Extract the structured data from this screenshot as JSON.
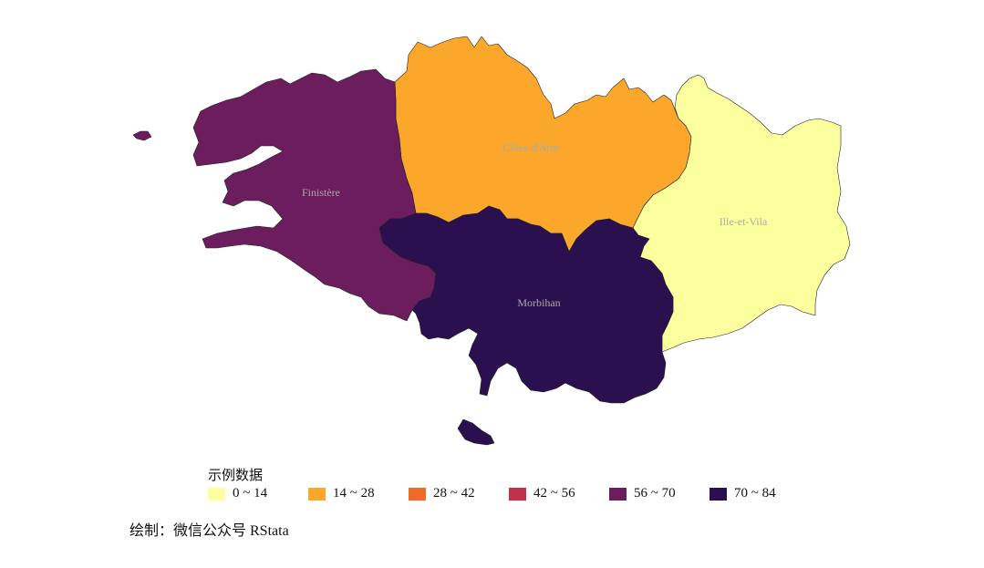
{
  "map": {
    "regions": [
      {
        "id": "finistere",
        "name": "Finistère",
        "fill": "#6B1D5D",
        "bin": "56 ~ 70"
      },
      {
        "id": "cotes",
        "name": "Côtes-d'Arm",
        "fill": "#FBA72C",
        "bin": "14 ~ 28"
      },
      {
        "id": "ille",
        "name": "Ille-et-Vila",
        "fill": "#FCFF9D",
        "bin": "0 ~ 14"
      },
      {
        "id": "morbihan",
        "name": "Morbihan",
        "fill": "#2B1050",
        "bin": "70 ~ 84"
      }
    ]
  },
  "legend": {
    "title": "示例数据",
    "items": [
      {
        "label": "0 ~ 14",
        "color": "#FCFF9D"
      },
      {
        "label": "14 ~ 28",
        "color": "#FBA72C"
      },
      {
        "label": "28 ~ 42",
        "color": "#F06A2A"
      },
      {
        "label": "42 ~ 56",
        "color": "#C13149"
      },
      {
        "label": "56 ~ 70",
        "color": "#6B1D5D"
      },
      {
        "label": "70 ~ 84",
        "color": "#2B1050"
      }
    ]
  },
  "caption": "绘制：微信公众号 RStata"
}
